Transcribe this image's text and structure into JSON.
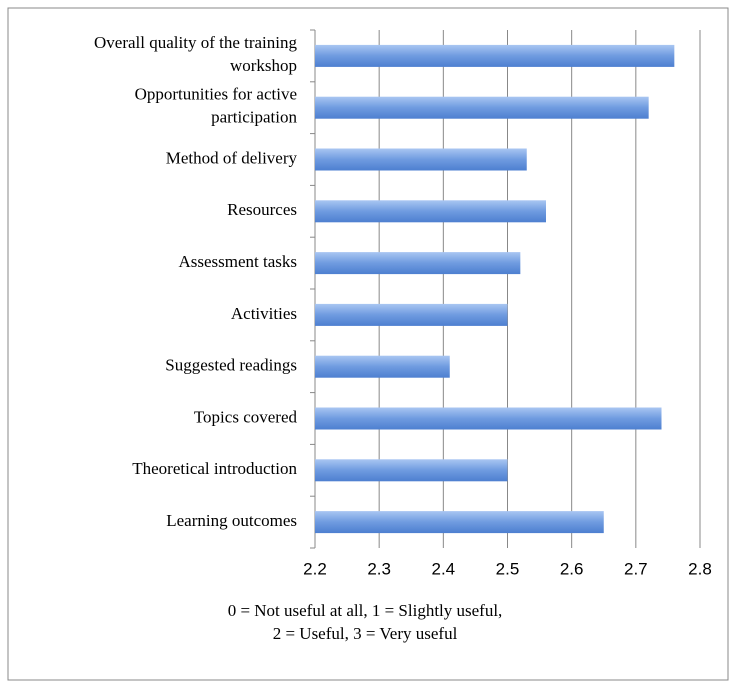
{
  "chart_data": {
    "type": "bar",
    "orientation": "horizontal",
    "categories": [
      "Overall quality of the training workshop",
      "Opportunities for active participation",
      "Method of delivery",
      "Resources",
      "Assessment tasks",
      "Activities",
      "Suggested readings",
      "Topics covered",
      "Theoretical introduction",
      "Learning outcomes"
    ],
    "values": [
      2.76,
      2.72,
      2.53,
      2.56,
      2.52,
      2.5,
      2.41,
      2.74,
      2.5,
      2.65
    ],
    "color": "#6f9be0",
    "xlim": [
      2.2,
      2.8
    ],
    "xticks": [
      2.2,
      2.3,
      2.4,
      2.5,
      2.6,
      2.7,
      2.8
    ],
    "grid": true,
    "note": [
      "0 = Not useful at all, 1 = Slightly useful,",
      "2 = Useful, 3 = Very useful"
    ]
  }
}
